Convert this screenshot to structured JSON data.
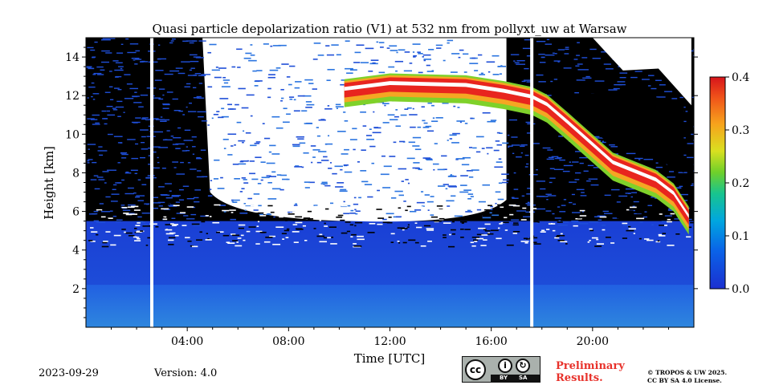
{
  "chart_data": {
    "type": "heatmap",
    "title": "Quasi particle depolarization ratio (V1) at 532 nm from pollyxt_uw at Warsaw",
    "xlabel": "Time [UTC]",
    "ylabel": "Height [km]",
    "xlim_hours": [
      0,
      24
    ],
    "ylim": [
      0,
      15
    ],
    "x_ticks": [
      "04:00",
      "08:00",
      "12:00",
      "16:00",
      "20:00"
    ],
    "x_tick_hours": [
      4,
      8,
      12,
      16,
      20
    ],
    "y_ticks": [
      2,
      4,
      6,
      8,
      10,
      12,
      14
    ],
    "colorbar": {
      "min": 0.0,
      "max": 0.4,
      "ticks": [
        "0.0",
        "0.1",
        "0.2",
        "0.3",
        "0.4"
      ],
      "colormap": "jet"
    },
    "data_gaps_hours": [
      2.6,
      17.6
    ],
    "boundary_layer_top_km": 2.2,
    "aerosol_layer_top_km": 5.5,
    "cirrus_layer": {
      "start_hour": 10.2,
      "end_hour": 23.8,
      "top_km": [
        12.6,
        12.9,
        12.8,
        12.5,
        12.2,
        11.8,
        10.9,
        8.8,
        7.9,
        7.2,
        6.0
      ],
      "hours": [
        10.2,
        12.0,
        15.0,
        16.5,
        17.6,
        18.2,
        19.0,
        20.8,
        22.5,
        23.2,
        23.8
      ]
    },
    "grid": false
  },
  "footer": {
    "date": "2023-09-29",
    "version": "Version: 4.0",
    "preliminary_line1": "Preliminary",
    "preliminary_line2": "Results.",
    "copyright_line1": "© TROPOS & UW 2025.",
    "copyright_line2": "CC BY SA 4.0 License.",
    "license_badge": {
      "cc": "cc",
      "by": "BY",
      "sa": "SA"
    }
  },
  "colors": {
    "low_depol": "#1f4fd8",
    "boundary_layer": "#2a74e0",
    "noise": "#000000",
    "gap": "#ffffff",
    "cirrus_core": "#ffffff",
    "cirrus_high": "#e8251e",
    "cirrus_edge": "#f5a623"
  }
}
